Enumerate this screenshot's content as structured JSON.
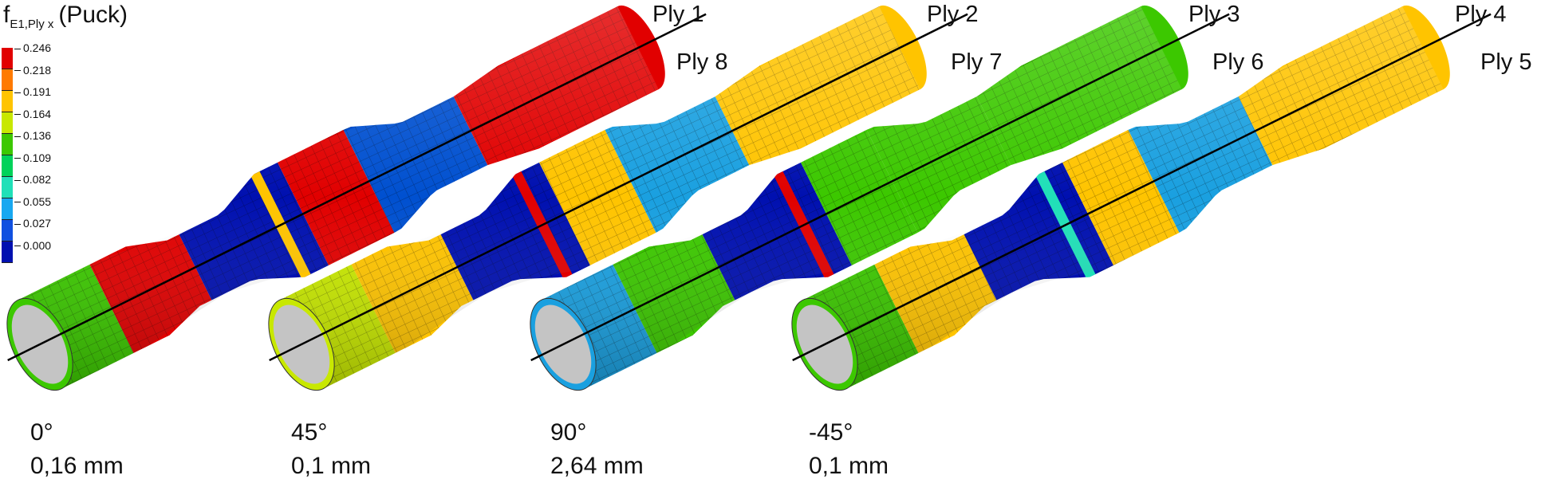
{
  "legend": {
    "title_main": "f",
    "title_sub": "E1,Ply x",
    "title_suffix": "(Puck)",
    "ticks": [
      "0.246",
      "0.218",
      "0.191",
      "0.164",
      "0.136",
      "0.109",
      "0.082",
      "0.055",
      "0.027",
      "0.000"
    ],
    "colors": [
      "#e10000",
      "#ff7a00",
      "#ffc400",
      "#c8e800",
      "#3cc800",
      "#00d25a",
      "#20e0b8",
      "#18a8f0",
      "#1050e0",
      "#0010b0"
    ]
  },
  "specimens": [
    {
      "angle": "0°",
      "thickness": "0,16 mm",
      "ply_outer": "Ply 1",
      "ply_inner": "Ply 8",
      "bands": [
        "#3cc800",
        "#e10000",
        "#0010b0",
        "#e10000",
        "#0050d0",
        "#e10000"
      ],
      "mid": "#ffc400"
    },
    {
      "angle": "45°",
      "thickness": "0,1 mm",
      "ply_outer": "Ply 2",
      "ply_inner": "Ply 7",
      "bands": [
        "#c8e800",
        "#ffc400",
        "#0010b0",
        "#ffc400",
        "#1aa0e0",
        "#ffc400"
      ],
      "mid": "#e10000"
    },
    {
      "angle": "90°",
      "thickness": "2,64 mm",
      "ply_outer": "Ply 3",
      "ply_inner": "Ply 6",
      "bands": [
        "#1aa0e0",
        "#3cc800",
        "#0010b0",
        "#3cc800",
        "#3cc800",
        "#3cc800"
      ],
      "mid": "#e10000"
    },
    {
      "angle": "-45°",
      "thickness": "0,1 mm",
      "ply_outer": "Ply 4",
      "ply_inner": "Ply 5",
      "bands": [
        "#3cc800",
        "#ffc400",
        "#0010b0",
        "#ffc400",
        "#1aa0e0",
        "#ffc400"
      ],
      "mid": "#20e0b8"
    }
  ]
}
